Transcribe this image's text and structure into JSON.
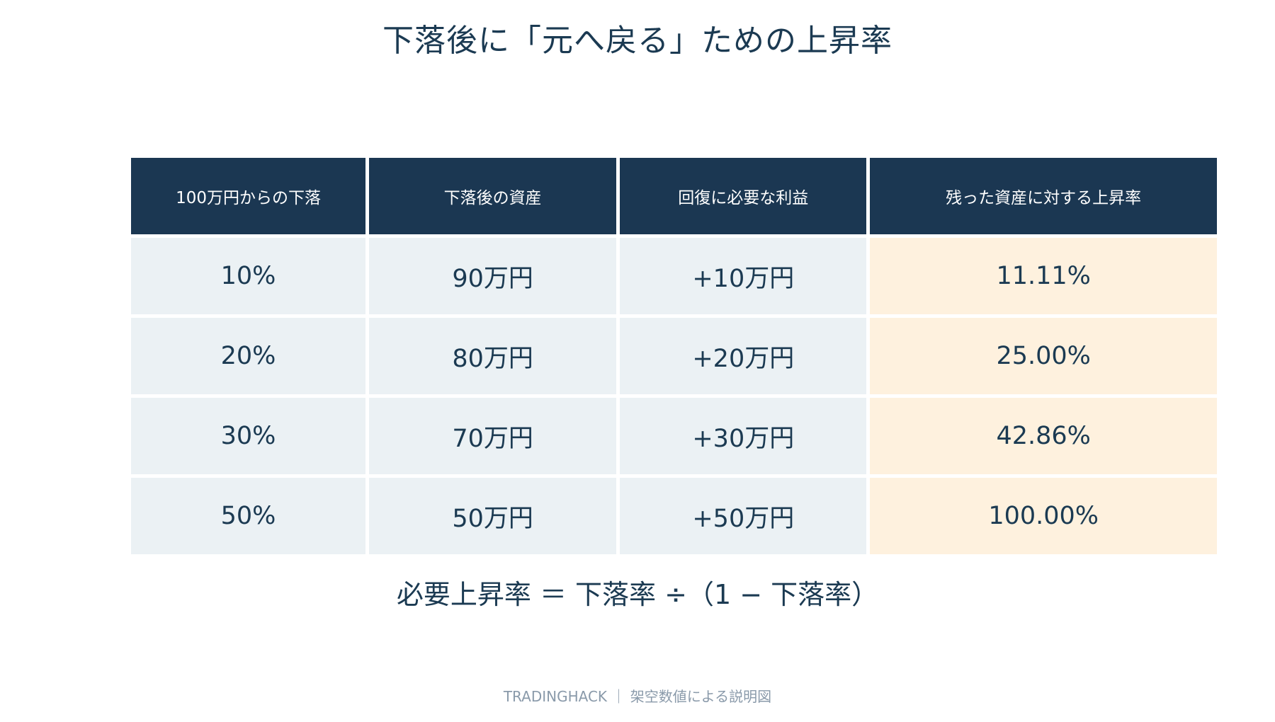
{
  "title": "下落後に「元へ戻る」ための上昇率",
  "chart_data": {
    "type": "table",
    "columns": [
      "100万円からの下落",
      "下落後の資産",
      "回復に必要な利益",
      "残った資産に対する上昇率"
    ],
    "rows": [
      [
        "10%",
        "90万円",
        "+10万円",
        "11.11%"
      ],
      [
        "20%",
        "80万円",
        "+20万円",
        "25.00%"
      ],
      [
        "30%",
        "70万円",
        "+30万円",
        "42.86%"
      ],
      [
        "50%",
        "50万円",
        "+50万円",
        "100.00%"
      ]
    ],
    "highlight_column": 3,
    "colors": {
      "header_bg": "#1b3752",
      "cell_bg": "#ebf1f4",
      "highlight_bg": "#fef1de",
      "text": "#1b3a52"
    }
  },
  "formula": "必要上昇率 ＝ 下落率 ÷（1 − 下落率）",
  "footer": "TRADINGHACK ｜ 架空数値による説明図"
}
